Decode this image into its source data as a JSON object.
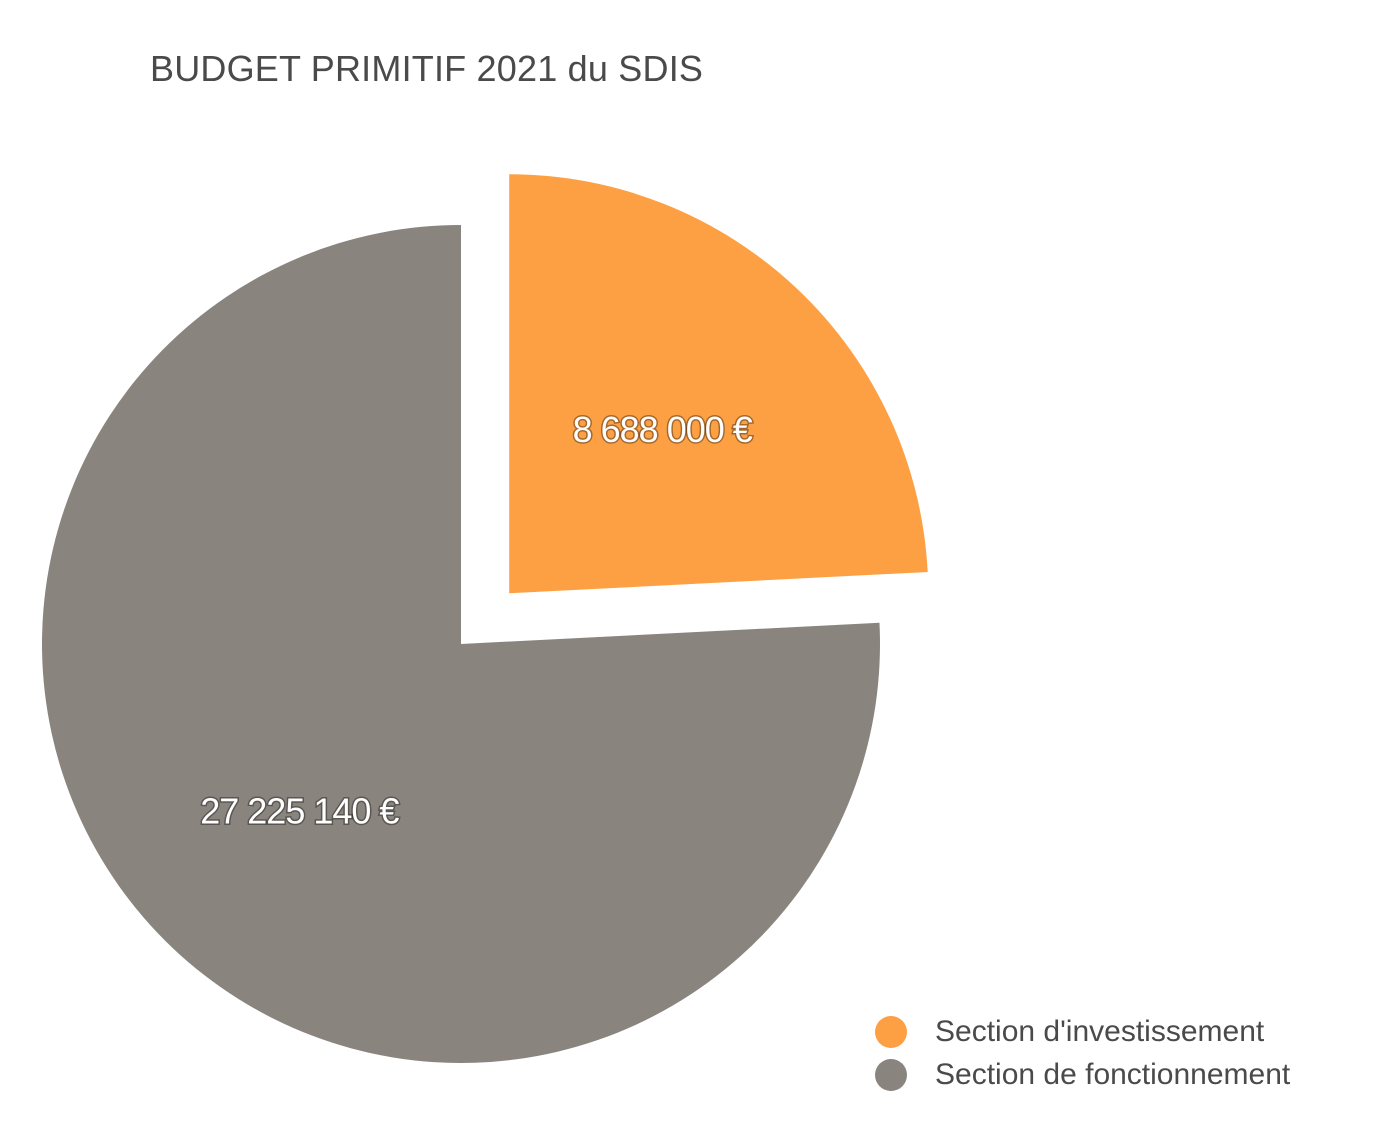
{
  "chart_data": {
    "type": "pie",
    "title": "BUDGET PRIMITIF 2021 du SDIS",
    "slices": [
      {
        "label": "Section d'investissement",
        "value": 8688000,
        "value_label": "8 688 000 €",
        "color": "#fda044",
        "exploded": true
      },
      {
        "label": "Section de fonctionnement",
        "value": 27225140,
        "value_label": "27 225 140 €",
        "color": "#8a847f",
        "exploded": false
      }
    ],
    "legend_position": "bottom-right"
  }
}
